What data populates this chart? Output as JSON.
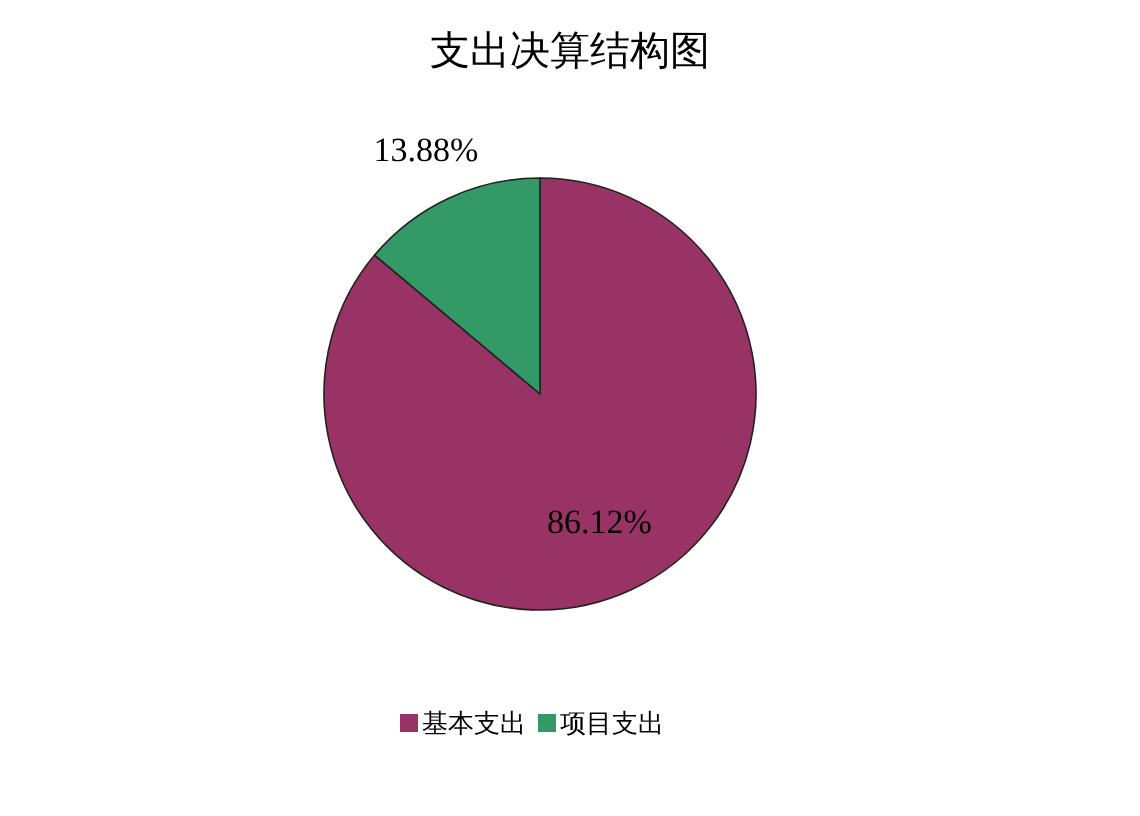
{
  "chart_data": {
    "type": "pie",
    "title": "支出决算结构图",
    "categories": [
      "基本支出",
      "项目支出"
    ],
    "values": [
      86.12,
      13.88
    ],
    "colors": [
      "#993366",
      "#339966"
    ],
    "value_labels": [
      "86.12%",
      "13.88%"
    ],
    "legend": "bottom"
  }
}
